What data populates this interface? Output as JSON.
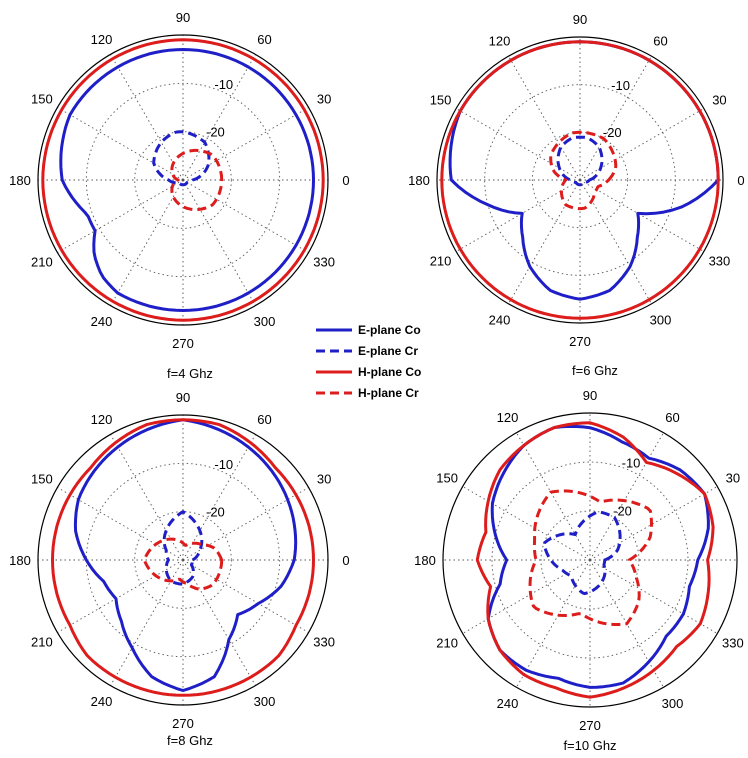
{
  "legend": [
    {
      "label": "E-plane Co",
      "color": "#1f1fc8",
      "dash": "solid"
    },
    {
      "label": "E-plane Cr",
      "color": "#1f1fc8",
      "dash": "dashed"
    },
    {
      "label": "H-plane Co",
      "color": "#dd1c1c",
      "dash": "solid"
    },
    {
      "label": "H-plane Cr",
      "color": "#dd1c1c",
      "dash": "dashed"
    }
  ],
  "chart_data": [
    {
      "type": "polar",
      "caption": "f=4 Ghz",
      "angle_labels": [
        "0",
        "30",
        "60",
        "90",
        "120",
        "150",
        "180",
        "210",
        "240",
        "270",
        "300",
        "330"
      ],
      "radial_labels": [
        "-10",
        "-20"
      ],
      "rlim": [
        -30,
        0
      ],
      "series": [
        {
          "name": "E-plane Co",
          "angles": [
            0,
            30,
            60,
            90,
            120,
            150,
            180,
            200,
            210,
            220,
            230,
            240,
            260,
            270,
            280,
            300,
            330
          ],
          "values": [
            -3,
            -3,
            -3,
            -3,
            -3,
            -3,
            -5,
            -9,
            -9,
            -6,
            -4,
            -3,
            -3,
            -3,
            -3,
            -3,
            -3
          ]
        },
        {
          "name": "E-plane Cr",
          "angles": [
            0,
            30,
            60,
            90,
            100,
            120,
            150,
            180,
            210,
            240,
            270,
            300,
            330
          ],
          "values": [
            -28,
            -24,
            -21,
            -20,
            -20,
            -21,
            -23,
            -27,
            -29,
            -29,
            -29,
            -29,
            -29
          ]
        },
        {
          "name": "H-plane Co",
          "angles": [
            0,
            30,
            60,
            90,
            120,
            150,
            180,
            210,
            240,
            270,
            300,
            330
          ],
          "values": [
            -1,
            -1,
            -1,
            -1,
            -1,
            -1,
            -1,
            -1,
            -1,
            -1,
            -1,
            -1
          ]
        },
        {
          "name": "H-plane Cr",
          "angles": [
            0,
            20,
            40,
            60,
            80,
            100,
            120,
            140,
            160,
            180,
            200,
            220,
            240,
            260,
            280,
            300,
            320,
            340
          ],
          "values": [
            -22,
            -22,
            -22,
            -23,
            -24,
            -25,
            -26,
            -27,
            -28,
            -29,
            -28,
            -27,
            -26,
            -25,
            -24,
            -23,
            -22,
            -22
          ]
        }
      ]
    },
    {
      "type": "polar",
      "caption": "f=6 Ghz",
      "angle_labels": [
        "0",
        "30",
        "60",
        "90",
        "120",
        "150",
        "180",
        "210",
        "240",
        "270",
        "300",
        "330"
      ],
      "radial_labels": [
        "-10",
        "-20"
      ],
      "rlim": [
        -30,
        0
      ],
      "series": [
        {
          "name": "E-plane Co",
          "angles": [
            0,
            30,
            60,
            90,
            120,
            150,
            180,
            195,
            210,
            225,
            240,
            255,
            270,
            285,
            300,
            315,
            330,
            345
          ],
          "values": [
            -1,
            -1,
            -1,
            -1,
            -1,
            -1,
            -3,
            -10,
            -16,
            -13,
            -9,
            -6,
            -5,
            -6,
            -9,
            -13,
            -16,
            -8
          ]
        },
        {
          "name": "E-plane Cr",
          "angles": [
            0,
            30,
            60,
            80,
            90,
            100,
            120,
            150,
            180,
            210,
            240,
            270,
            300,
            330
          ],
          "values": [
            -28,
            -25,
            -22,
            -21,
            -21,
            -21,
            -22,
            -25,
            -28,
            -29,
            -29,
            -29,
            -29,
            -29
          ]
        },
        {
          "name": "H-plane Co",
          "angles": [
            0,
            30,
            60,
            90,
            120,
            150,
            180,
            210,
            240,
            270,
            300,
            330
          ],
          "values": [
            -1,
            -1,
            -1,
            -1,
            -1,
            -1,
            -1,
            -1,
            -1,
            -1,
            -1,
            -1
          ]
        },
        {
          "name": "H-plane Cr",
          "angles": [
            0,
            20,
            40,
            60,
            80,
            100,
            120,
            140,
            160,
            180,
            200,
            220,
            240,
            260,
            280,
            300,
            320,
            340
          ],
          "values": [
            -24,
            -22,
            -21,
            -20,
            -20,
            -20,
            -21,
            -22,
            -24,
            -27,
            -26,
            -25,
            -24,
            -24,
            -24,
            -25,
            -26,
            -26
          ]
        }
      ]
    },
    {
      "type": "polar",
      "caption": "f=8 Ghz",
      "angle_labels": [
        "0",
        "30",
        "60",
        "90",
        "120",
        "150",
        "180",
        "210",
        "240",
        "270",
        "300",
        "330"
      ],
      "radial_labels": [
        "-10",
        "-20"
      ],
      "rlim": [
        -30,
        0
      ],
      "series": [
        {
          "name": "E-plane Co",
          "angles": [
            0,
            15,
            30,
            45,
            60,
            75,
            90,
            105,
            120,
            135,
            150,
            165,
            180,
            195,
            210,
            225,
            240,
            255,
            270,
            285,
            300,
            315,
            330,
            345
          ],
          "values": [
            -7,
            -6,
            -5,
            -4,
            -3,
            -2,
            -1,
            -2,
            -3,
            -4,
            -5,
            -7,
            -10,
            -13,
            -14,
            -12,
            -9,
            -5,
            -3,
            -5,
            -11,
            -14,
            -12,
            -9
          ]
        },
        {
          "name": "E-plane Cr",
          "angles": [
            0,
            30,
            60,
            80,
            90,
            100,
            120,
            150,
            180,
            210,
            240,
            270,
            300,
            330
          ],
          "values": [
            -28,
            -26,
            -23,
            -21,
            -20,
            -21,
            -23,
            -26,
            -27,
            -26,
            -25,
            -25,
            -26,
            -28
          ]
        },
        {
          "name": "H-plane Co",
          "angles": [
            0,
            15,
            30,
            45,
            60,
            75,
            90,
            105,
            120,
            135,
            150,
            165,
            180,
            195,
            210,
            225,
            240,
            255,
            270,
            285,
            300,
            315,
            330,
            345
          ],
          "values": [
            -3,
            -3,
            -3,
            -3,
            -2,
            -1,
            -1,
            -1,
            -2,
            -3,
            -3,
            -3,
            -3,
            -3,
            -3,
            -2,
            -2,
            -2,
            -2,
            -2,
            -2,
            -2,
            -3,
            -3
          ]
        },
        {
          "name": "H-plane Cr",
          "angles": [
            0,
            20,
            40,
            60,
            80,
            100,
            120,
            140,
            160,
            180,
            200,
            220,
            240,
            260,
            280,
            300,
            320,
            340
          ],
          "values": [
            -22,
            -23,
            -25,
            -26,
            -27,
            -26,
            -25,
            -24,
            -23,
            -22,
            -23,
            -24,
            -25,
            -26,
            -25,
            -23,
            -22,
            -22
          ]
        }
      ]
    },
    {
      "type": "polar",
      "caption": "f=10 Ghz",
      "angle_labels": [
        "0",
        "30",
        "60",
        "90",
        "120",
        "150",
        "180",
        "210",
        "240",
        "270",
        "300",
        "330"
      ],
      "radial_labels": [
        "-10",
        "-20"
      ],
      "rlim": [
        -30,
        0
      ],
      "series": [
        {
          "name": "E-plane Co",
          "angles": [
            0,
            15,
            30,
            45,
            60,
            75,
            90,
            105,
            120,
            135,
            150,
            165,
            180,
            195,
            210,
            225,
            240,
            255,
            270,
            285,
            300,
            315,
            330,
            345
          ],
          "values": [
            -8,
            -5,
            -3,
            -4,
            -6,
            -5,
            -3,
            -2,
            -3,
            -5,
            -7,
            -10,
            -13,
            -11,
            -6,
            -4,
            -4,
            -5,
            -4,
            -4,
            -6,
            -8,
            -8,
            -9
          ]
        },
        {
          "name": "E-plane Cr",
          "angles": [
            0,
            20,
            40,
            60,
            80,
            100,
            120,
            140,
            160,
            180,
            200,
            220,
            240,
            260,
            280,
            300,
            320,
            340
          ],
          "values": [
            -27,
            -24,
            -22,
            -20,
            -20,
            -22,
            -24,
            -22,
            -20,
            -22,
            -24,
            -25,
            -24,
            -23,
            -24,
            -25,
            -26,
            -27
          ]
        },
        {
          "name": "H-plane Co",
          "angles": [
            0,
            15,
            30,
            45,
            60,
            75,
            90,
            105,
            120,
            135,
            150,
            165,
            180,
            195,
            210,
            225,
            240,
            255,
            270,
            285,
            300,
            315,
            330,
            345
          ],
          "values": [
            -6,
            -4,
            -3,
            -5,
            -7,
            -4,
            -2,
            -2,
            -3,
            -4,
            -6,
            -8,
            -7,
            -9,
            -6,
            -4,
            -3,
            -3,
            -2,
            -3,
            -4,
            -5,
            -4,
            -5
          ]
        },
        {
          "name": "H-plane Cr",
          "angles": [
            0,
            20,
            40,
            60,
            80,
            100,
            120,
            140,
            160,
            180,
            200,
            220,
            240,
            260,
            280,
            300,
            320,
            340
          ],
          "values": [
            -22,
            -17,
            -14,
            -16,
            -18,
            -16,
            -14,
            -16,
            -18,
            -19,
            -17,
            -15,
            -17,
            -19,
            -17,
            -15,
            -17,
            -20
          ]
        }
      ]
    }
  ]
}
